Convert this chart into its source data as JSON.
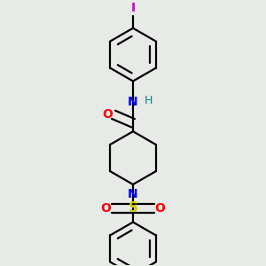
{
  "background_color": "#e8eae8",
  "bond_color": "#000000",
  "atom_colors": {
    "N": "#0000ff",
    "O": "#ff0000",
    "S": "#cccc00",
    "I": "#cc00cc",
    "H": "#008080"
  },
  "figsize": [
    3.0,
    3.0
  ],
  "dpi": 100,
  "bond_lw": 1.6,
  "font_size": 10
}
